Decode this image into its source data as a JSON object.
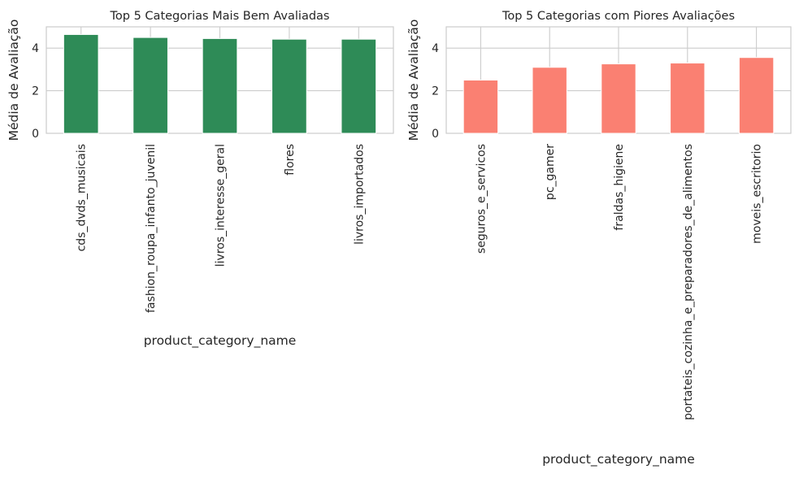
{
  "chart_data": [
    {
      "type": "bar",
      "title": "Top 5 Categorias Mais Bem Avaliadas",
      "xlabel": "product_category_name",
      "ylabel": "Média de Avaliação",
      "categories": [
        "cds_dvds_musicais",
        "fashion_roupa_infanto_juvenil",
        "livros_interesse_geral",
        "flores",
        "livros_importados"
      ],
      "values": [
        4.64,
        4.5,
        4.45,
        4.42,
        4.42
      ],
      "ylim": [
        0,
        5
      ],
      "yticks": [
        0,
        2,
        4
      ],
      "grid": true,
      "color": "#2e8b57"
    },
    {
      "type": "bar",
      "title": "Top 5 Categorias com Piores Avaliações",
      "xlabel": "product_category_name",
      "ylabel": "Média de Avaliação",
      "categories": [
        "seguros_e_servicos",
        "pc_gamer",
        "fraldas_higiene",
        "portateis_cozinha_e_preparadores_de_alimentos",
        "moveis_escritorio"
      ],
      "values": [
        2.5,
        3.1,
        3.26,
        3.3,
        3.56
      ],
      "ylim": [
        0,
        5
      ],
      "yticks": [
        0,
        2,
        4
      ],
      "grid": true,
      "color": "#fa8072"
    }
  ]
}
